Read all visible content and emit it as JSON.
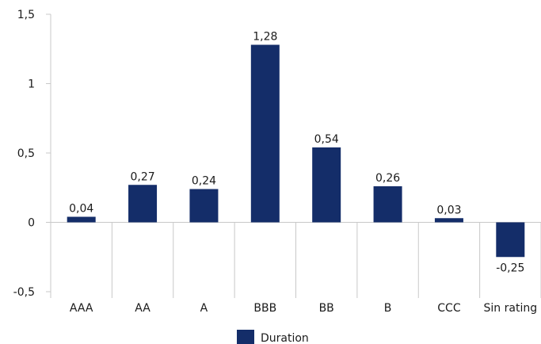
{
  "chart_data": {
    "type": "bar",
    "categories": [
      "AAA",
      "AA",
      "A",
      "BBB",
      "BB",
      "B",
      "CCC",
      "Sin rating"
    ],
    "series": [
      {
        "name": "Duration",
        "values": [
          0.04,
          0.27,
          0.24,
          1.28,
          0.54,
          0.26,
          0.03,
          -0.25
        ]
      }
    ],
    "data_labels": [
      "0,04",
      "0,27",
      "0,24",
      "1,28",
      "0,54",
      "0,26",
      "0,03",
      "-0,25"
    ],
    "ylim": [
      -0.5,
      1.5
    ],
    "yticks": [
      -0.5,
      0,
      0.5,
      1,
      1.5
    ],
    "ytick_labels": [
      "-0,5",
      "0",
      "0,5",
      "1",
      "1,5"
    ],
    "title": "",
    "xlabel": "",
    "ylabel": "",
    "grid": false,
    "legend": {
      "position": "bottom",
      "entries": [
        "Duration"
      ]
    },
    "colors": {
      "bar": "#142d69",
      "axis": "#c8c8c8",
      "text": "#1a1a1a"
    }
  }
}
